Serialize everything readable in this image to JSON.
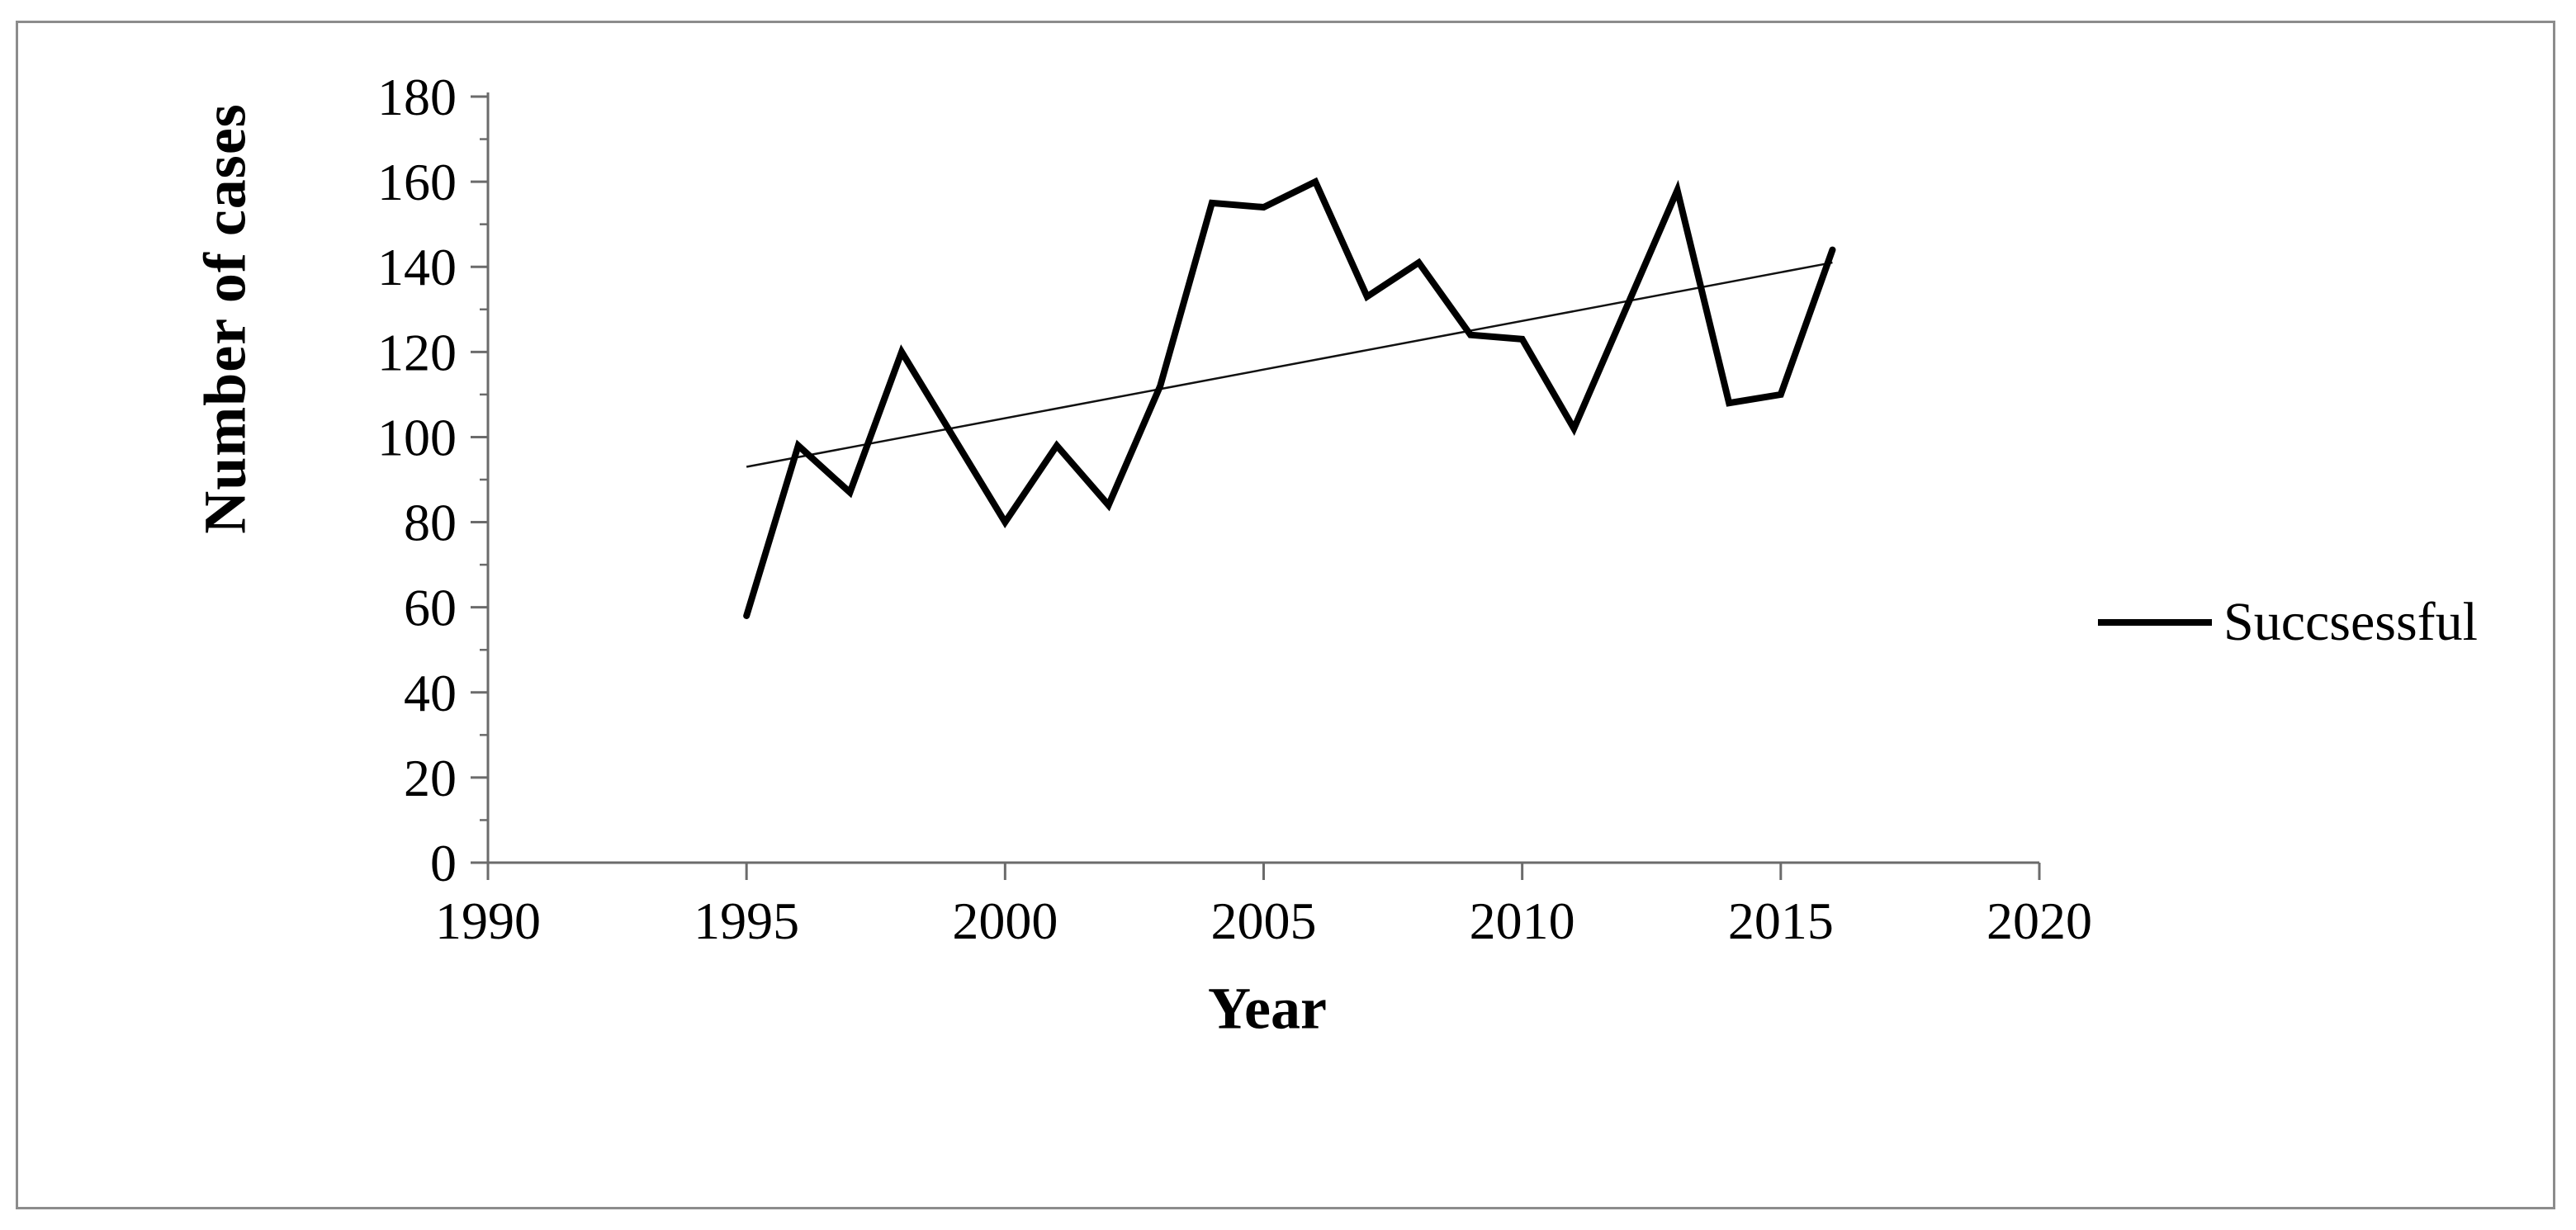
{
  "frame": {
    "border_color": "#8c8c8c",
    "background": "#ffffff"
  },
  "chart_data": {
    "type": "line",
    "title": "",
    "xlabel": "Year",
    "ylabel": "Number of cases",
    "x": [
      1995,
      1996,
      1997,
      1998,
      1999,
      2000,
      2001,
      2002,
      2003,
      2004,
      2005,
      2006,
      2007,
      2008,
      2009,
      2010,
      2011,
      2012,
      2013,
      2014,
      2015,
      2016
    ],
    "series": [
      {
        "name": "Succsessful",
        "values": [
          58,
          98,
          87,
          120,
          100,
          80,
          98,
          84,
          112,
          155,
          154,
          160,
          133,
          141,
          124,
          123,
          102,
          130,
          158,
          108,
          110,
          144
        ],
        "color": "#000000",
        "stroke_width": 8
      }
    ],
    "trendline": {
      "x": [
        1995,
        2016
      ],
      "values": [
        93,
        141
      ],
      "color": "#111111",
      "stroke_width": 2.5
    },
    "x_axis": {
      "min": 1990,
      "max": 2020,
      "tick_step": 5,
      "tick_labels": [
        "1990",
        "1995",
        "2000",
        "2005",
        "2010",
        "2015",
        "2020"
      ]
    },
    "y_axis": {
      "min": 0,
      "max": 180,
      "tick_step": 20,
      "minor_tick_step": 10,
      "tick_labels": [
        "0",
        "20",
        "40",
        "60",
        "80",
        "100",
        "120",
        "140",
        "160",
        "180"
      ]
    },
    "legend": {
      "label": "Succsessful",
      "position": "right"
    },
    "grid": "off",
    "axis_color": "#6b6b6b",
    "text_color": "#000000"
  }
}
